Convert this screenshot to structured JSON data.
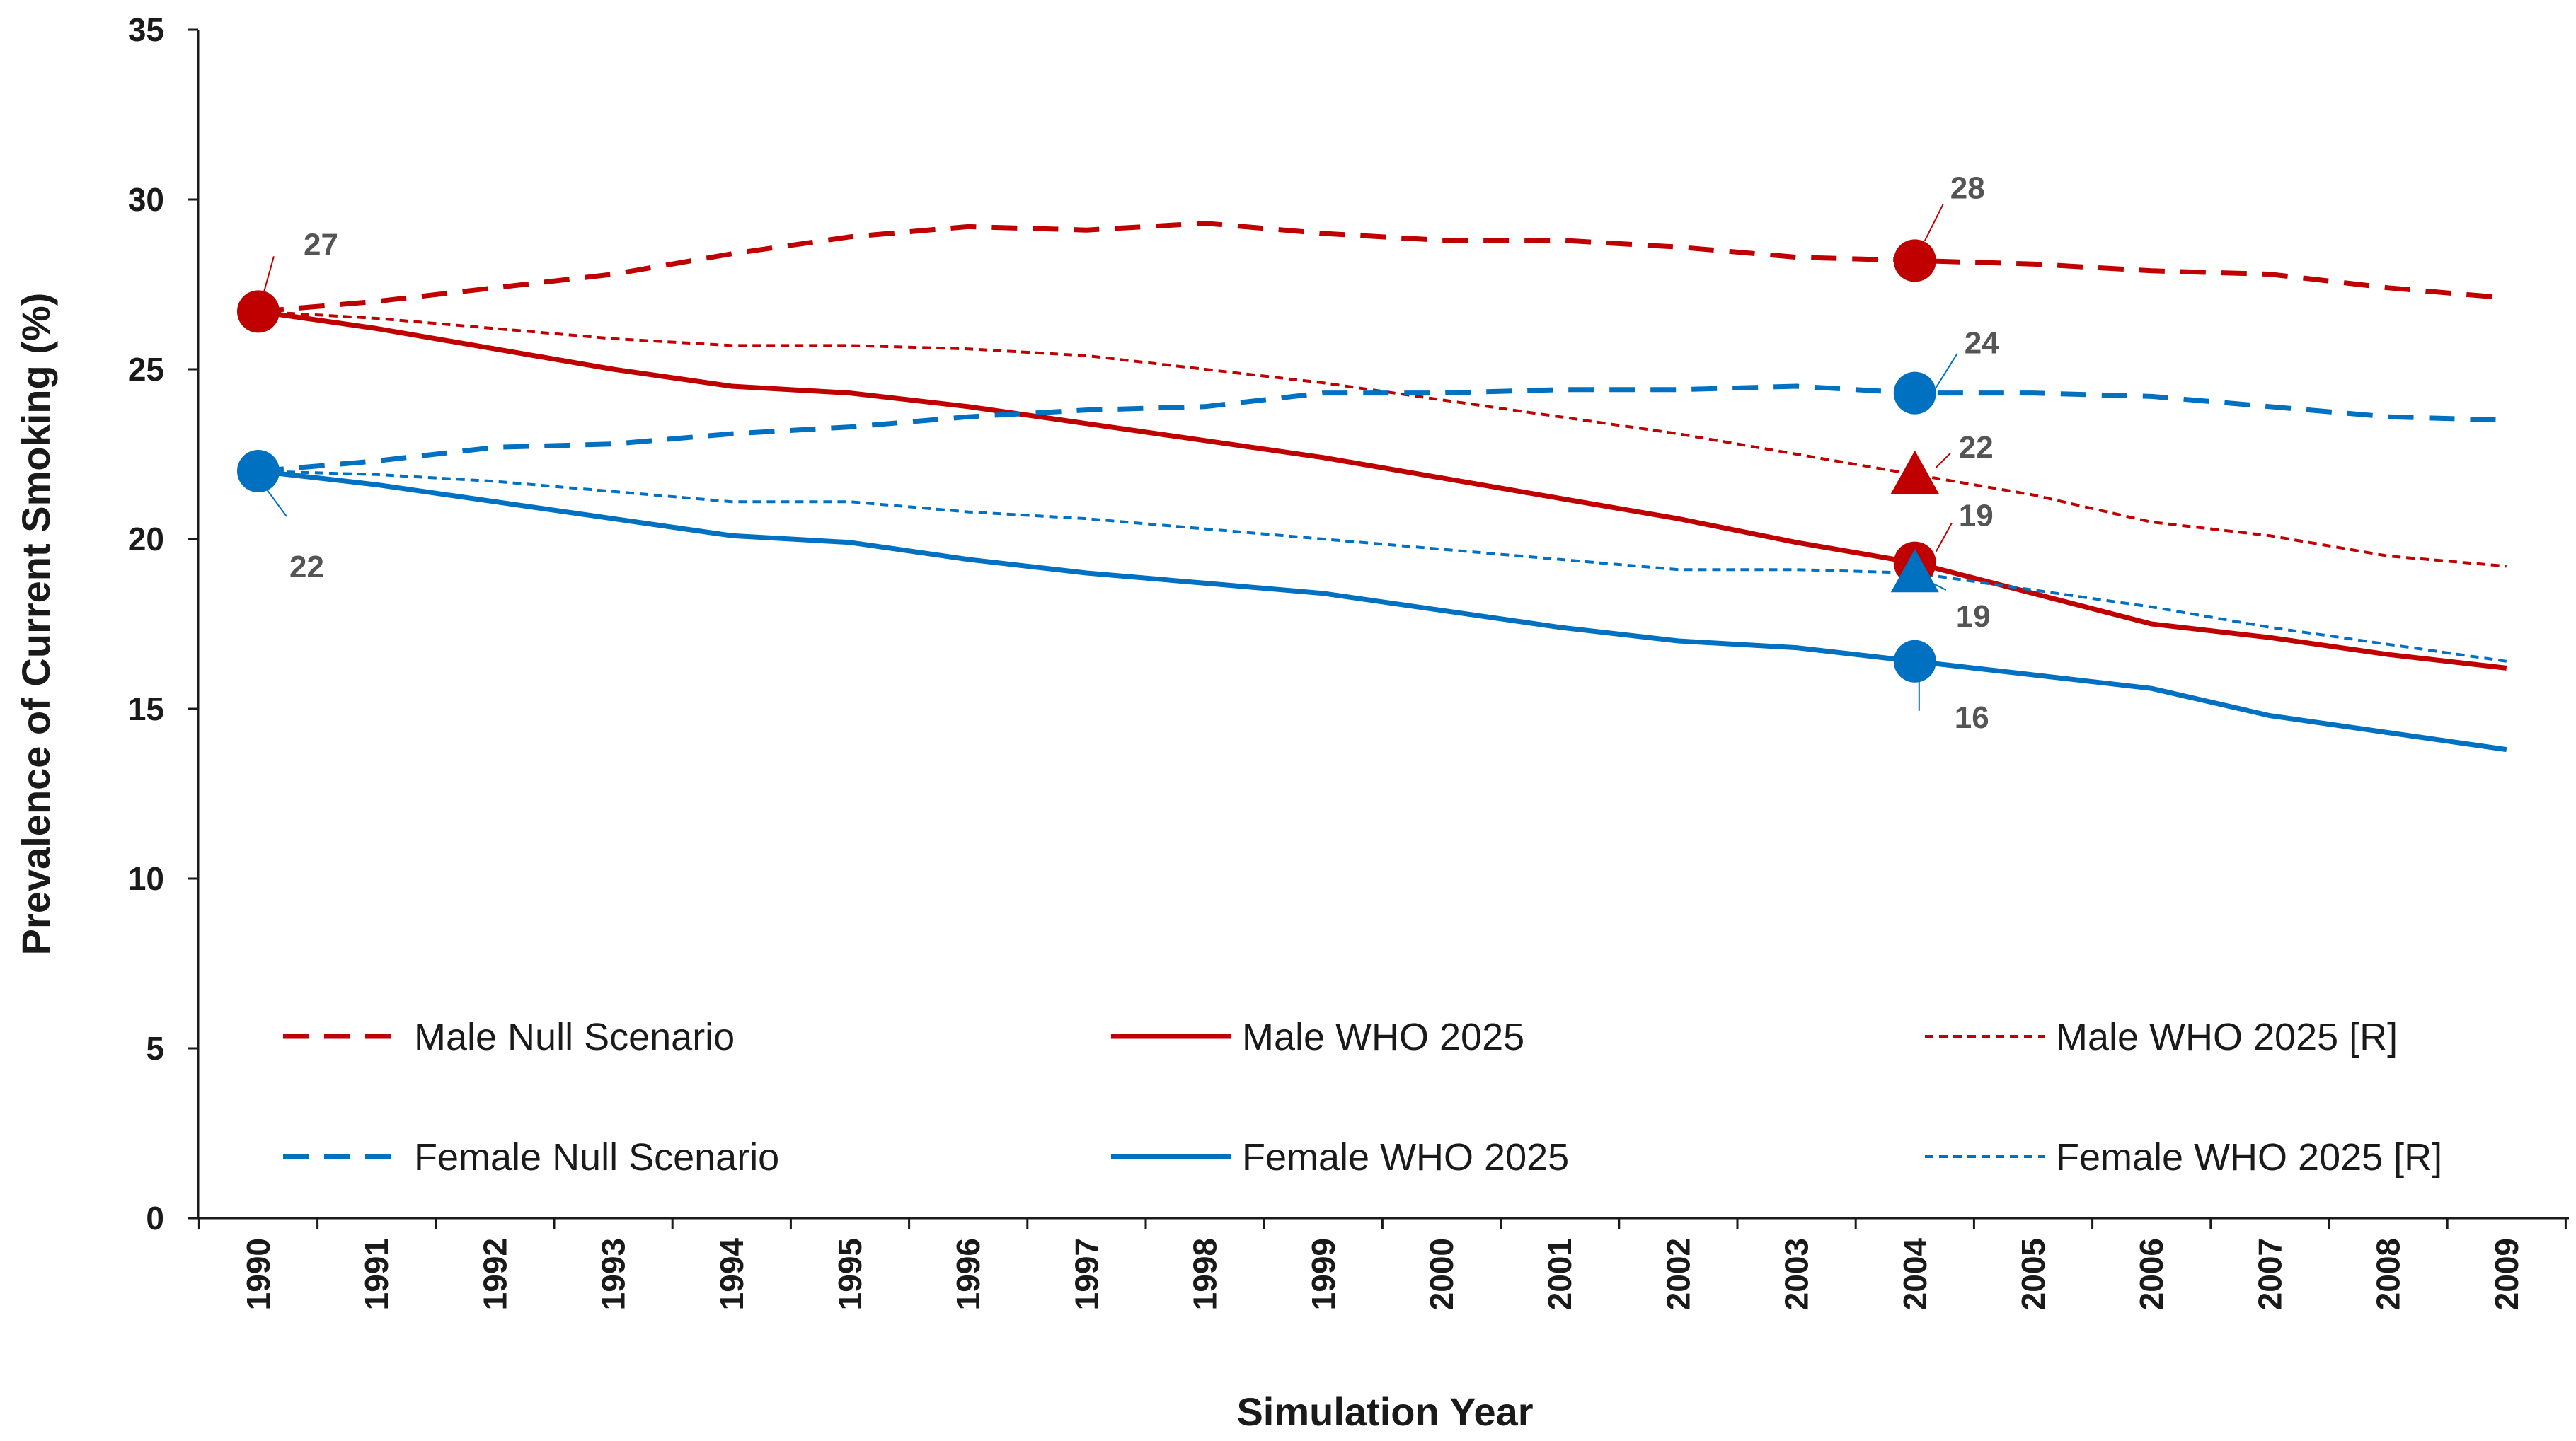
{
  "chart_data": {
    "type": "line",
    "title": "",
    "xlabel": "Simulation Year",
    "ylabel": "Prevalence of Current Smoking (%)",
    "ylim": [
      0,
      35
    ],
    "yticks": [
      0,
      5,
      10,
      15,
      20,
      25,
      30,
      35
    ],
    "grid": false,
    "legend_position": "bottom-inside",
    "categories": [
      "1990",
      "1991",
      "1992",
      "1993",
      "1994",
      "1995",
      "1996",
      "1997",
      "1998",
      "1999",
      "2000",
      "2001",
      "2002",
      "2003",
      "2004",
      "2005",
      "2006",
      "2007",
      "2008",
      "2009"
    ],
    "series": [
      {
        "name": "Male Null Scenario",
        "color": "#c00000",
        "style": "dash",
        "values": [
          26.7,
          27.0,
          27.4,
          27.8,
          28.4,
          28.9,
          29.2,
          29.1,
          29.3,
          29.0,
          28.8,
          28.8,
          28.6,
          28.3,
          28.2,
          28.1,
          27.9,
          27.8,
          27.4,
          27.1
        ]
      },
      {
        "name": "Male WHO 2025",
        "color": "#c00000",
        "style": "solid",
        "values": [
          26.7,
          26.2,
          25.6,
          25.0,
          24.5,
          24.3,
          23.9,
          23.4,
          22.9,
          22.4,
          21.8,
          21.2,
          20.6,
          19.9,
          19.3,
          18.4,
          17.5,
          17.1,
          16.6,
          16.2
        ]
      },
      {
        "name": "Male WHO 2025 [R]",
        "color": "#c00000",
        "style": "dot",
        "values": [
          26.7,
          26.5,
          26.2,
          25.9,
          25.7,
          25.7,
          25.6,
          25.4,
          25.0,
          24.6,
          24.1,
          23.6,
          23.1,
          22.5,
          21.9,
          21.3,
          20.5,
          20.1,
          19.5,
          19.2
        ]
      },
      {
        "name": "Female Null Scenario",
        "color": "#0070c0",
        "style": "dash",
        "values": [
          22.0,
          22.3,
          22.7,
          22.8,
          23.1,
          23.3,
          23.6,
          23.8,
          23.9,
          24.3,
          24.3,
          24.4,
          24.4,
          24.5,
          24.3,
          24.3,
          24.2,
          23.9,
          23.6,
          23.5
        ]
      },
      {
        "name": "Female WHO 2025",
        "color": "#0070c0",
        "style": "solid",
        "values": [
          22.0,
          21.6,
          21.1,
          20.6,
          20.1,
          19.9,
          19.4,
          19.0,
          18.7,
          18.4,
          17.9,
          17.4,
          17.0,
          16.8,
          16.4,
          16.0,
          15.6,
          14.8,
          14.3,
          13.8
        ]
      },
      {
        "name": "Female WHO 2025 [R]",
        "color": "#0070c0",
        "style": "dot",
        "values": [
          22.0,
          21.9,
          21.7,
          21.4,
          21.1,
          21.1,
          20.8,
          20.6,
          20.3,
          20.0,
          19.7,
          19.4,
          19.1,
          19.1,
          19.0,
          18.5,
          18.0,
          17.4,
          16.9,
          16.4
        ]
      }
    ],
    "markers": [
      {
        "year": "1990",
        "value": 26.7,
        "shape": "circle",
        "color": "#c00000",
        "label": "27"
      },
      {
        "year": "1990",
        "value": 22.0,
        "shape": "circle",
        "color": "#0070c0",
        "label": "22"
      },
      {
        "year": "2004",
        "value": 28.2,
        "shape": "circle",
        "color": "#c00000",
        "label": "28"
      },
      {
        "year": "2004",
        "value": 24.3,
        "shape": "circle",
        "color": "#0070c0",
        "label": "24"
      },
      {
        "year": "2004",
        "value": 21.9,
        "shape": "triangle",
        "color": "#c00000",
        "label": "22"
      },
      {
        "year": "2004",
        "value": 19.3,
        "shape": "circle",
        "color": "#c00000",
        "label": "19"
      },
      {
        "year": "2004",
        "value": 19.0,
        "shape": "triangle",
        "color": "#0070c0",
        "label": "19"
      },
      {
        "year": "2004",
        "value": 16.4,
        "shape": "circle",
        "color": "#0070c0",
        "label": "16"
      }
    ]
  }
}
